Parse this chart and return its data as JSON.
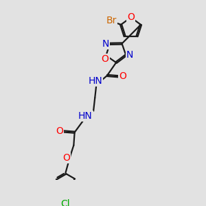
{
  "bg_color": "#e2e2e2",
  "bond_color": "#1a1a1a",
  "dbo": 0.04,
  "atom_colors": {
    "O": "#ff0000",
    "N": "#0000cc",
    "Br": "#cc6600",
    "Cl": "#00aa00",
    "C": "#1a1a1a",
    "H": "#555555"
  },
  "font_size": 10,
  "lw": 1.6
}
